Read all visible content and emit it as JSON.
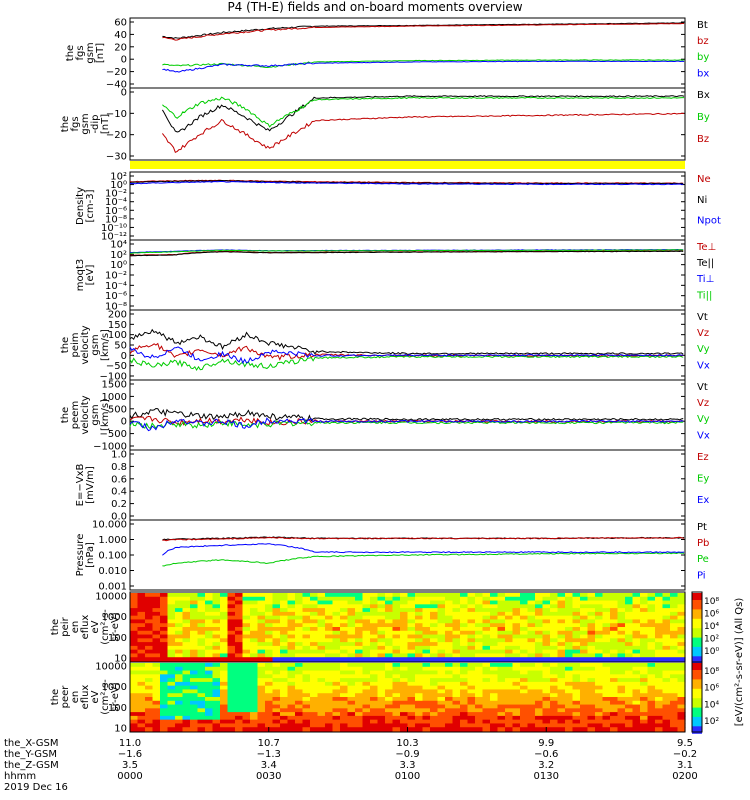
{
  "title": "P4 (TH-E) fields and on-board moments overview",
  "colors": {
    "black": "#000000",
    "red": "#c00000",
    "green": "#00cc00",
    "blue": "#0000ff",
    "yellow": "#ffff00"
  },
  "chart_data": [
    {
      "type": "line",
      "panel": "fgs_gsm",
      "ylabel": [
        "the",
        "fgs",
        "gsm",
        "[nT]"
      ],
      "yticks": [
        "60",
        "40",
        "20",
        "0",
        "−20",
        "−40"
      ],
      "ylim": [
        -40,
        60
      ],
      "series": [
        {
          "name": "Bt",
          "color": "black",
          "x": [
            7,
            10,
            20,
            30,
            40,
            60,
            90,
            120
          ],
          "y": [
            36,
            33,
            42,
            48,
            52,
            53,
            55,
            57
          ]
        },
        {
          "name": "bz",
          "color": "red",
          "x": [
            7,
            10,
            20,
            30,
            40,
            60,
            90,
            120
          ],
          "y": [
            34,
            31,
            40,
            46,
            50,
            52,
            54,
            56
          ]
        },
        {
          "name": "by",
          "color": "green",
          "x": [
            7,
            10,
            20,
            30,
            40,
            60,
            90,
            120
          ],
          "y": [
            -8,
            -10,
            -7,
            -12,
            -4,
            -2,
            -1,
            -1
          ]
        },
        {
          "name": "bx",
          "color": "blue",
          "x": [
            7,
            10,
            20,
            30,
            40,
            60,
            90,
            120
          ],
          "y": [
            -15,
            -20,
            -8,
            -10,
            -6,
            -4,
            -3,
            -3
          ]
        }
      ]
    },
    {
      "type": "line",
      "panel": "fgs_gsm_dip",
      "ylabel": [
        "the",
        "fgs",
        "gsm",
        "-dip",
        "[nT]"
      ],
      "yticks": [
        "0",
        "−10",
        "−20",
        "−30"
      ],
      "ylim": [
        -33,
        5
      ],
      "series": [
        {
          "name": "Bx",
          "color": "black",
          "x": [
            7,
            10,
            15,
            20,
            25,
            30,
            40,
            60,
            90,
            120
          ],
          "y": [
            -5,
            -20,
            -10,
            -3,
            -10,
            -18,
            1,
            2,
            2,
            2
          ]
        },
        {
          "name": "By",
          "color": "green",
          "x": [
            7,
            10,
            15,
            20,
            25,
            30,
            40,
            60,
            90,
            120
          ],
          "y": [
            -3,
            -10,
            -2,
            1,
            -5,
            -15,
            0,
            1,
            1,
            1
          ]
        },
        {
          "name": "Bz",
          "color": "red",
          "x": [
            7,
            10,
            15,
            20,
            25,
            30,
            40,
            60,
            90,
            120
          ],
          "y": [
            -20,
            -30,
            -20,
            -12,
            -20,
            -28,
            -12,
            -10,
            -9,
            -8
          ]
        }
      ]
    },
    {
      "type": "line",
      "panel": "density",
      "yscale": "log",
      "ylabel": [
        "Density",
        "[cm-3]"
      ],
      "yticks": [
        "10²",
        "10⁰",
        "10⁻²",
        "10⁻⁴",
        "10⁻⁶",
        "10⁻⁸",
        "10⁻¹⁰",
        "10⁻¹²"
      ],
      "ylim": [
        1e-12,
        100
      ],
      "series": [
        {
          "name": "Ne",
          "color": "red",
          "x": [
            0,
            10,
            20,
            30,
            40,
            60,
            90,
            120
          ],
          "y": [
            3,
            5,
            6,
            4,
            3,
            2,
            1.5,
            1.5
          ]
        },
        {
          "name": "Ni",
          "color": "black",
          "x": [
            0,
            10,
            20,
            30,
            40,
            60,
            90,
            120
          ],
          "y": [
            2,
            4,
            5,
            3,
            2,
            1.5,
            1.2,
            1.2
          ]
        },
        {
          "name": "Npot",
          "color": "blue",
          "x": [
            0,
            10,
            20,
            30,
            40,
            60,
            90,
            120
          ],
          "y": [
            1,
            2,
            3,
            2,
            1.5,
            1,
            0.8,
            0.8
          ]
        }
      ]
    },
    {
      "type": "line",
      "panel": "moqt3",
      "yscale": "log",
      "ylabel": [
        "moqt3",
        "[eV]"
      ],
      "yticks": [
        "10⁴",
        "10²",
        "10⁰",
        "10⁻²",
        "10⁻⁴",
        "10⁻⁶",
        "10⁻⁸"
      ],
      "ylim": [
        1e-09,
        100000.0
      ],
      "series": [
        {
          "name": "Te⊥",
          "color": "red",
          "x": [
            0,
            10,
            20,
            30,
            60,
            90,
            120
          ],
          "y": [
            200,
            300,
            1500,
            800,
            1200,
            1500,
            1800
          ]
        },
        {
          "name": "Te||",
          "color": "black",
          "x": [
            0,
            10,
            20,
            30,
            60,
            90,
            120
          ],
          "y": [
            150,
            250,
            1200,
            700,
            1000,
            1300,
            1500
          ]
        },
        {
          "name": "Ti⊥",
          "color": "blue",
          "x": [
            0,
            10,
            20,
            30,
            60,
            90,
            120
          ],
          "y": [
            800,
            1500,
            3000,
            2000,
            2500,
            3000,
            3500
          ]
        },
        {
          "name": "Ti||",
          "color": "green",
          "x": [
            0,
            10,
            20,
            30,
            60,
            90,
            120
          ],
          "y": [
            600,
            1200,
            2500,
            1800,
            2200,
            2500,
            3000
          ]
        }
      ]
    },
    {
      "type": "line",
      "panel": "peim_velocity",
      "ylabel": [
        "the",
        "peim",
        "velocity",
        "gsm",
        "[km/s]"
      ],
      "yticks": [
        "200",
        "150",
        "100",
        "50",
        "0",
        "−50",
        "−100"
      ],
      "ylim": [
        -100,
        200
      ],
      "series": [
        {
          "name": "Vt",
          "color": "black",
          "x": [
            0,
            5,
            10,
            15,
            20,
            25,
            30,
            40,
            60,
            90,
            120
          ],
          "y": [
            80,
            120,
            60,
            90,
            40,
            100,
            60,
            20,
            10,
            10,
            10
          ]
        },
        {
          "name": "Vz",
          "color": "red",
          "x": [
            0,
            5,
            10,
            15,
            20,
            25,
            30,
            40,
            60,
            90,
            120
          ],
          "y": [
            20,
            60,
            -10,
            30,
            0,
            40,
            -10,
            5,
            0,
            0,
            0
          ]
        },
        {
          "name": "Vy",
          "color": "green",
          "x": [
            0,
            5,
            10,
            15,
            20,
            25,
            30,
            40,
            60,
            90,
            120
          ],
          "y": [
            -20,
            -50,
            -30,
            -60,
            -20,
            -40,
            -50,
            -10,
            -5,
            -5,
            -5
          ]
        },
        {
          "name": "Vx",
          "color": "blue",
          "x": [
            0,
            5,
            10,
            15,
            20,
            25,
            30,
            40,
            60,
            90,
            120
          ],
          "y": [
            30,
            -10,
            40,
            -20,
            10,
            -30,
            20,
            0,
            2,
            2,
            2
          ]
        }
      ]
    },
    {
      "type": "line",
      "panel": "peem_velocity",
      "ylabel": [
        "the",
        "peem",
        "velocity",
        "gsm",
        "[km/s]"
      ],
      "yticks": [
        "1500",
        "1000",
        "500",
        "0",
        "−500",
        "−1000"
      ],
      "ylim": [
        -1000,
        1500
      ],
      "series": [
        {
          "name": "Vt",
          "color": "black",
          "x": [
            0,
            5,
            10,
            15,
            20,
            25,
            30,
            40,
            60,
            90,
            120
          ],
          "y": [
            200,
            400,
            300,
            200,
            150,
            350,
            200,
            100,
            80,
            80,
            80
          ]
        },
        {
          "name": "Vz",
          "color": "red",
          "x": [
            0,
            5,
            10,
            15,
            20,
            25,
            30,
            40,
            60,
            90,
            120
          ],
          "y": [
            50,
            100,
            -50,
            50,
            0,
            100,
            -50,
            0,
            0,
            0,
            0
          ]
        },
        {
          "name": "Vy",
          "color": "green",
          "x": [
            0,
            5,
            10,
            15,
            20,
            25,
            30,
            40,
            60,
            90,
            120
          ],
          "y": [
            -100,
            -200,
            -100,
            -150,
            -50,
            -150,
            -100,
            -50,
            -50,
            -50,
            -50
          ]
        },
        {
          "name": "Vx",
          "color": "blue",
          "x": [
            0,
            5,
            10,
            15,
            20,
            25,
            30,
            40,
            60,
            90,
            120
          ],
          "y": [
            0,
            -300,
            100,
            -100,
            0,
            -200,
            50,
            0,
            0,
            0,
            0
          ]
        }
      ]
    },
    {
      "type": "line",
      "panel": "efield",
      "ylabel": [
        "E=−VxB",
        "[mV/m]"
      ],
      "yticks": [
        "1.0",
        "0.8",
        "0.6",
        "0.4",
        "0.2",
        "0.0"
      ],
      "ylim": [
        0,
        1
      ],
      "series": [
        {
          "name": "Ez",
          "color": "red",
          "x": [],
          "y": []
        },
        {
          "name": "Ey",
          "color": "green",
          "x": [],
          "y": []
        },
        {
          "name": "Ex",
          "color": "blue",
          "x": [],
          "y": []
        }
      ]
    },
    {
      "type": "line",
      "panel": "pressure",
      "yscale": "log",
      "ylabel": [
        "Pressure",
        "[nPa]"
      ],
      "yticks": [
        "10.000",
        "1.000",
        "0.100",
        "0.010",
        "0.001"
      ],
      "ylim": [
        0.001,
        10
      ],
      "series": [
        {
          "name": "Pt",
          "color": "black",
          "x": [
            7,
            10,
            20,
            30,
            40,
            60,
            90,
            120
          ],
          "y": [
            0.9,
            1.0,
            1.1,
            1.3,
            1.1,
            1.1,
            1.1,
            1.2
          ]
        },
        {
          "name": "Pb",
          "color": "red",
          "x": [
            7,
            10,
            20,
            30,
            40,
            60,
            90,
            120
          ],
          "y": [
            0.8,
            0.9,
            1.0,
            1.2,
            1.05,
            1.1,
            1.1,
            1.2
          ]
        },
        {
          "name": "Pe",
          "color": "green",
          "x": [
            7,
            10,
            20,
            30,
            40,
            60,
            90,
            120
          ],
          "y": [
            0.02,
            0.03,
            0.05,
            0.03,
            0.08,
            0.1,
            0.12,
            0.13
          ]
        },
        {
          "name": "Pi",
          "color": "blue",
          "x": [
            7,
            10,
            20,
            30,
            40,
            60,
            90,
            120
          ],
          "y": [
            0.1,
            0.3,
            0.4,
            0.5,
            0.15,
            0.15,
            0.15,
            0.15
          ]
        }
      ]
    },
    {
      "type": "heatmap",
      "panel": "peir_eflux",
      "ylabel": [
        "the",
        "peir",
        "en",
        "eflux",
        "eV",
        "(cm²-s-",
        "sr-eV)"
      ],
      "yticks": [
        "10000",
        "1000",
        "100",
        "10"
      ],
      "ylim": [
        5,
        30000
      ],
      "colorbar": {
        "ticks": [
          "10⁸",
          "10⁶",
          "10⁴",
          "10²",
          "10⁰"
        ],
        "label": "[eV/(cm²-s-sr-eV)] (All Qs)"
      }
    },
    {
      "type": "heatmap",
      "panel": "peer_eflux",
      "ylabel": [
        "the",
        "peer",
        "en",
        "eflux",
        "eV",
        "(cm²-s-",
        "sr-eV)"
      ],
      "yticks": [
        "10000",
        "1000",
        "100",
        "10"
      ],
      "ylim": [
        5,
        30000
      ],
      "colorbar": {
        "ticks": [
          "10⁸",
          "10⁶",
          "10⁴",
          "10²"
        ],
        "label": "[eV/(cm²-s-sr-eV)]"
      }
    }
  ],
  "x_axis": {
    "row_labels": [
      "the_X-GSM",
      "the_Y-GSM",
      "the_Z-GSM",
      "hhmm",
      "2019 Dec 16"
    ],
    "ticks": [
      {
        "t": 0,
        "vals": [
          "11.0",
          "−1.6",
          "3.5",
          "0000"
        ]
      },
      {
        "t": 30,
        "vals": [
          "10.7",
          "−1.3",
          "3.4",
          "0030"
        ]
      },
      {
        "t": 60,
        "vals": [
          "10.3",
          "−0.9",
          "3.3",
          "0100"
        ]
      },
      {
        "t": 90,
        "vals": [
          "9.9",
          "−0.6",
          "3.2",
          "0130"
        ]
      },
      {
        "t": 120,
        "vals": [
          "9.5",
          "−0.2",
          "3.1",
          "0200"
        ]
      }
    ]
  }
}
